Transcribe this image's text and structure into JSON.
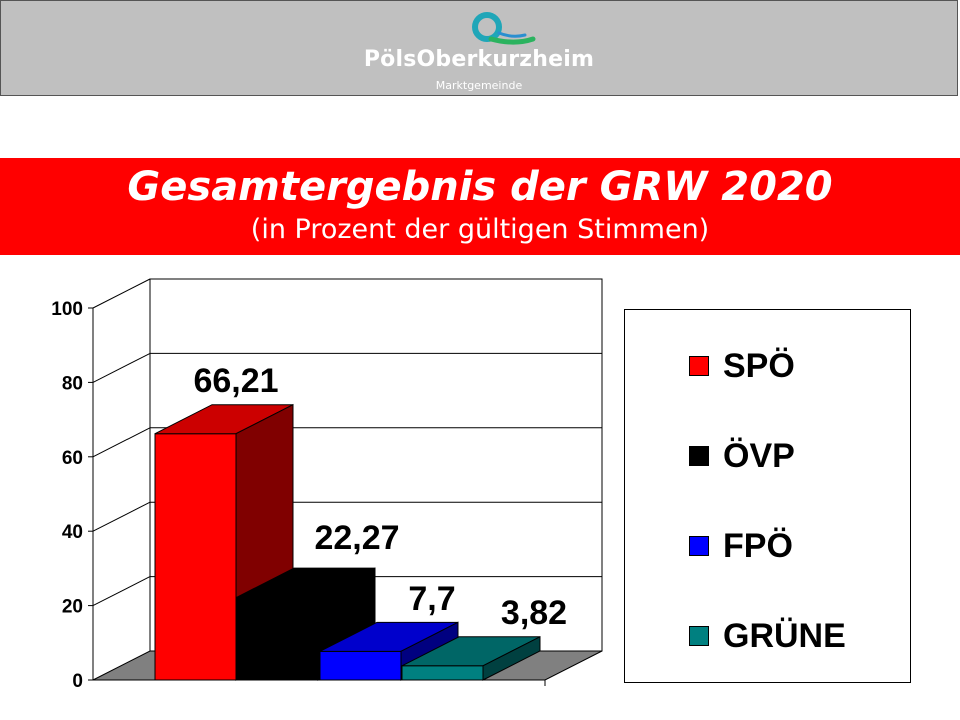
{
  "header": {
    "logo_name": "PölsOberkurzheim",
    "logo_sub": "Marktgemeinde",
    "background": "#c0c0c0"
  },
  "title_band": {
    "title": "Gesamtergebnis der GRW 2020",
    "subtitle": "(in Prozent der gültigen Stimmen)",
    "background": "#ff0000"
  },
  "chart_data": {
    "type": "bar",
    "style": "3d",
    "categories": [
      "SPÖ",
      "ÖVP",
      "FPÖ",
      "GRÜNE"
    ],
    "values": [
      66.21,
      22.27,
      7.7,
      3.82
    ],
    "value_labels": [
      "66,21",
      "22,27",
      "7,7",
      "3,82"
    ],
    "colors": [
      "#ff0000",
      "#000000",
      "#0000ff",
      "#008080"
    ],
    "ylim": [
      0,
      100
    ],
    "yticks": [
      0,
      20,
      40,
      60,
      80,
      100
    ],
    "ytick_labels": [
      "0",
      "20",
      "40",
      "60",
      "80",
      "100"
    ],
    "grid": true,
    "legend_position": "right",
    "legend": [
      "SPÖ",
      "ÖVP",
      "FPÖ",
      "GRÜNE"
    ]
  }
}
